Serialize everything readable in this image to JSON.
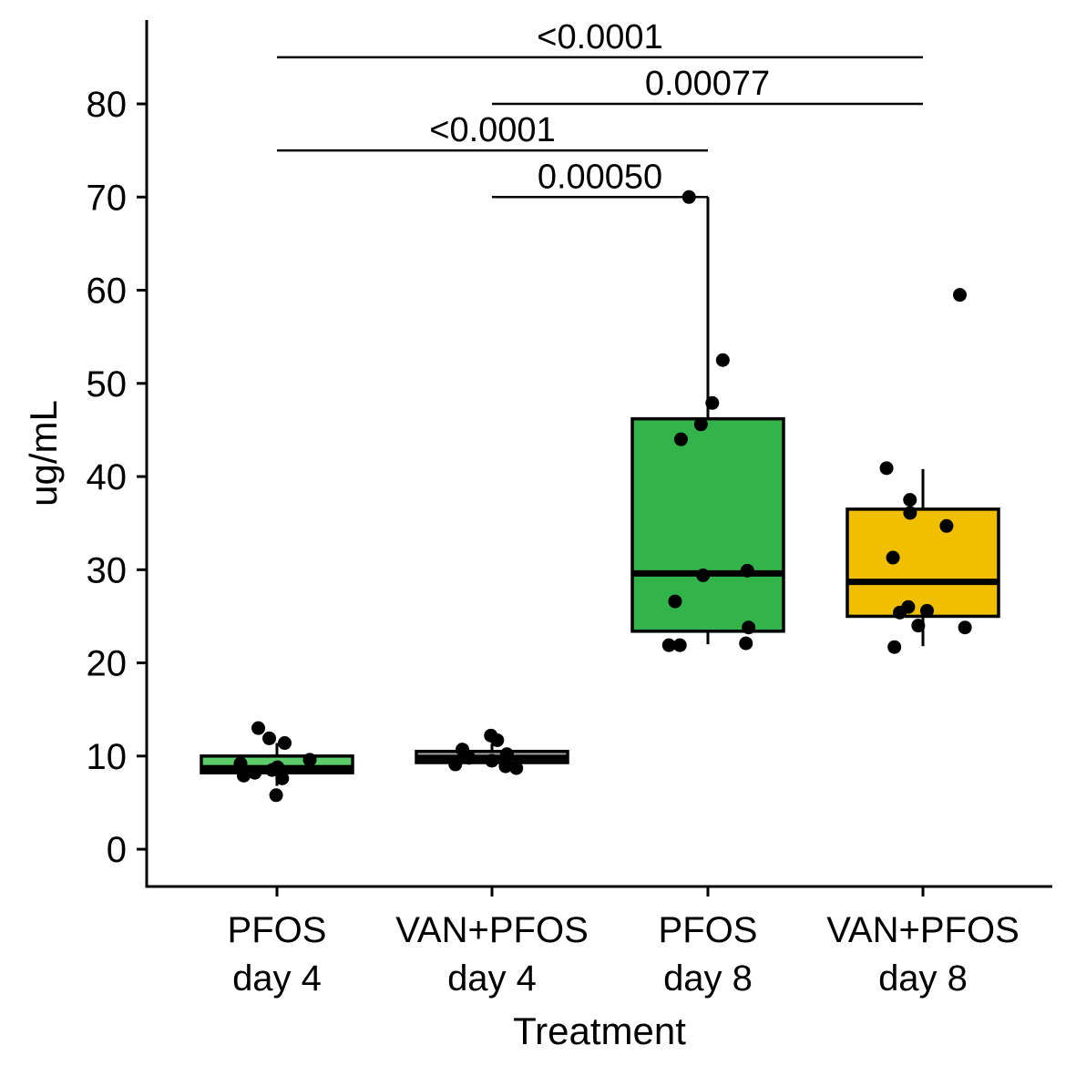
{
  "chart_data": {
    "type": "box",
    "xlabel": "Treatment",
    "ylabel": "ug/mL",
    "ylim": [
      -4,
      89
    ],
    "yticks": [
      0,
      10,
      20,
      30,
      40,
      50,
      60,
      70,
      80
    ],
    "grid": false,
    "legend": "none",
    "groups": [
      {
        "label_line1": "PFOS",
        "label_line2": "day 4",
        "color": "#5ccc6a",
        "box": {
          "whisker_low": 6.8,
          "q1": 8.2,
          "median": 8.7,
          "q3": 10.0,
          "whisker_high": 11.4
        },
        "points": [
          5.8,
          7.6,
          7.9,
          8.2,
          8.5,
          8.8,
          9.2,
          9.6,
          11.4,
          11.9,
          13.0
        ]
      },
      {
        "label_line1": "VAN+PFOS",
        "label_line2": "day 4",
        "color": "#aaaaaa",
        "box": {
          "whisker_low": 8.9,
          "q1": 9.3,
          "median": 9.8,
          "q3": 10.5,
          "whisker_high": 11.3
        },
        "points": [
          8.7,
          8.9,
          9.1,
          9.5,
          9.8,
          10.2,
          10.7,
          11.7,
          12.2
        ]
      },
      {
        "label_line1": "PFOS",
        "label_line2": "day 8",
        "color": "#33b44a",
        "box": {
          "whisker_low": 22.0,
          "q1": 23.4,
          "median": 29.6,
          "q3": 46.2,
          "whisker_high": 70.0
        },
        "points": [
          21.9,
          21.9,
          22.1,
          23.8,
          26.6,
          29.4,
          29.9,
          44.0,
          45.6,
          47.9,
          52.5,
          70.0
        ]
      },
      {
        "label_line1": "VAN+PFOS",
        "label_line2": "day 8",
        "color": "#f0c000",
        "box": {
          "whisker_low": 21.8,
          "q1": 25.0,
          "median": 28.7,
          "q3": 36.5,
          "whisker_high": 40.8
        },
        "points": [
          21.7,
          23.8,
          24.0,
          25.4,
          25.6,
          26.0,
          31.3,
          34.7,
          36.1,
          37.5,
          40.9,
          59.5
        ]
      }
    ],
    "comparisons": [
      {
        "from": 1,
        "to": 2,
        "y": 70,
        "label": "0.00050"
      },
      {
        "from": 0,
        "to": 2,
        "y": 75,
        "label": "<0.0001"
      },
      {
        "from": 1,
        "to": 3,
        "y": 80,
        "label": "0.00077"
      },
      {
        "from": 0,
        "to": 3,
        "y": 85,
        "label": "<0.0001"
      }
    ]
  }
}
